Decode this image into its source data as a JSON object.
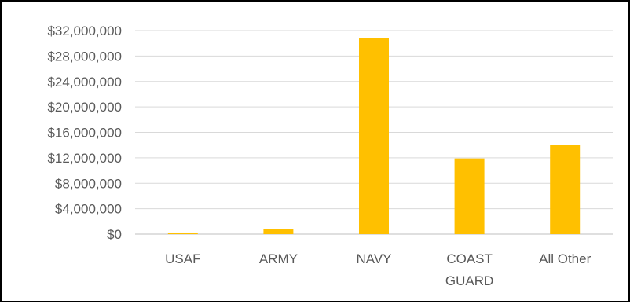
{
  "chart_data": {
    "type": "bar",
    "categories": [
      "USAF",
      "ARMY",
      "NAVY",
      "COAST GUARD",
      "All Other"
    ],
    "category_label_lines": [
      [
        "USAF"
      ],
      [
        "ARMY"
      ],
      [
        "NAVY"
      ],
      [
        "COAST",
        "GUARD"
      ],
      [
        "All Other"
      ]
    ],
    "values": [
      250000,
      800000,
      30800000,
      11900000,
      14000000
    ],
    "ylim": [
      0,
      32000000
    ],
    "yticks": [
      0,
      4000000,
      8000000,
      12000000,
      16000000,
      20000000,
      24000000,
      28000000,
      32000000
    ],
    "ytick_labels": [
      "$0",
      "$4,000,000",
      "$8,000,000",
      "$12,000,000",
      "$16,000,000",
      "$20,000,000",
      "$24,000,000",
      "$28,000,000",
      "$32,000,000"
    ],
    "title": "",
    "xlabel": "",
    "ylabel": "",
    "grid": true,
    "legend": "none",
    "bar_color": "#FFC000"
  }
}
